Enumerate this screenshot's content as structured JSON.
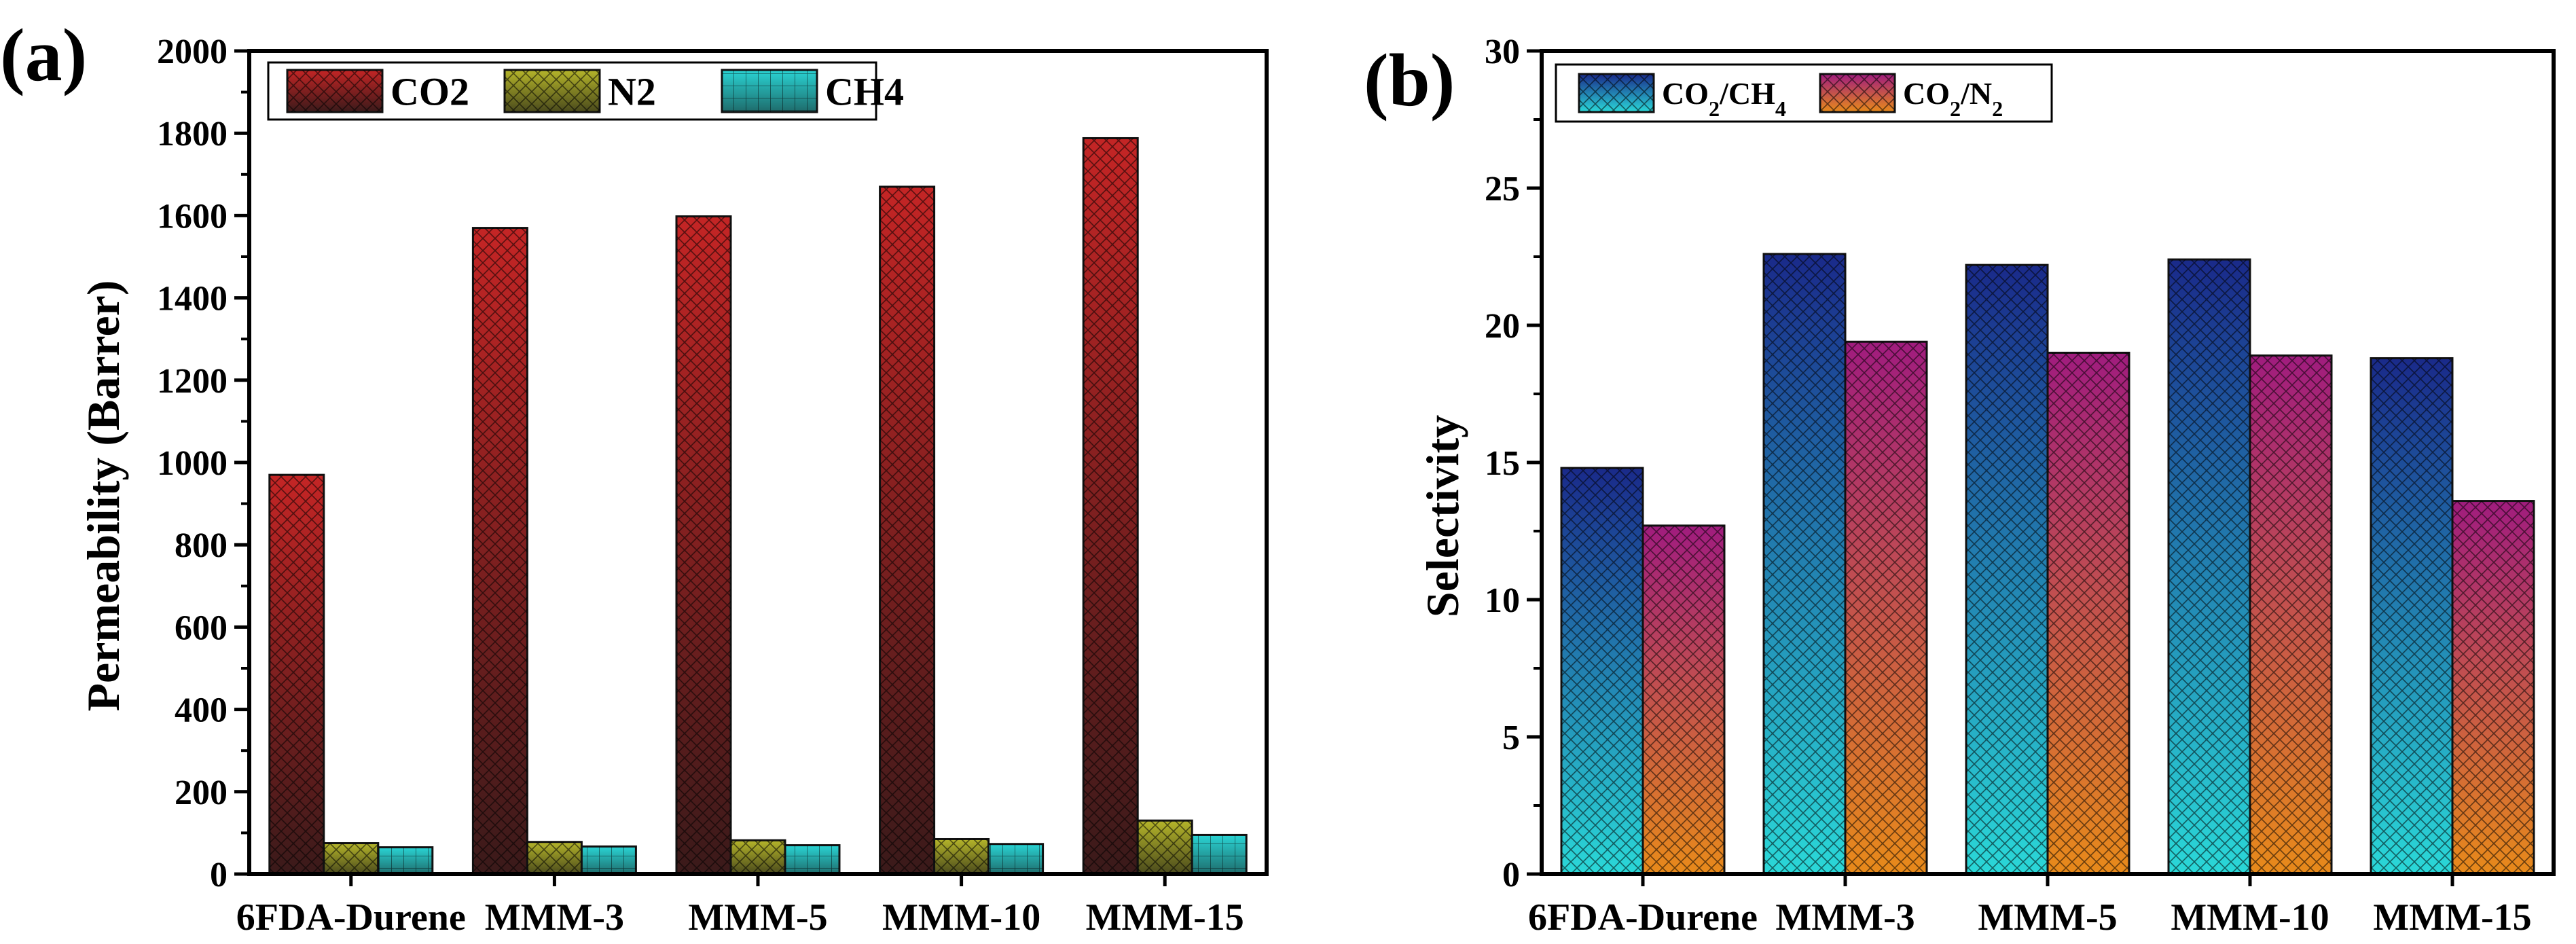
{
  "panels": {
    "a": {
      "label": "(a)"
    },
    "b": {
      "label": "(b)"
    }
  },
  "colors": {
    "co2_top": "#c42525",
    "co2_bottom": "#3a1a1a",
    "n2_top": "#b5b52a",
    "n2_bottom": "#4a4a1c",
    "ch4_top": "#2ad4d4",
    "ch4_bottom": "#1e6b6b",
    "co2ch4_top": "#1a2a8a",
    "co2ch4_bottom": "#2ad8d8",
    "co2n2_top": "#a01c7e",
    "co2n2_bottom": "#e88a1a"
  },
  "chart_data": [
    {
      "type": "bar",
      "title": "",
      "xlabel": "",
      "ylabel": "Permeability (Barrer)",
      "ylim": [
        0,
        2000
      ],
      "yticks": [
        "0",
        "200",
        "400",
        "600",
        "800",
        "1000",
        "1200",
        "1400",
        "1600",
        "1800",
        "2000"
      ],
      "categories": [
        "6FDA-Durene",
        "MMM-3",
        "MMM-5",
        "MMM-10",
        "MMM-15"
      ],
      "legend_position": "top-left",
      "series": [
        {
          "name": "CO2",
          "values": [
            970,
            1570,
            1598,
            1670,
            1788
          ]
        },
        {
          "name": "N2",
          "values": [
            75,
            78,
            82,
            85,
            130
          ]
        },
        {
          "name": "CH4",
          "values": [
            65,
            67,
            70,
            73,
            95
          ]
        }
      ]
    },
    {
      "type": "bar",
      "title": "",
      "xlabel": "",
      "ylabel": "Selectivity",
      "ylim": [
        0,
        30
      ],
      "yticks": [
        "0",
        "5",
        "10",
        "15",
        "20",
        "25",
        "30"
      ],
      "categories": [
        "6FDA-Durene",
        "MMM-3",
        "MMM-5",
        "MMM-10",
        "MMM-15"
      ],
      "legend_position": "top-left",
      "series": [
        {
          "name": "CO2/CH4",
          "values": [
            14.8,
            22.6,
            22.2,
            22.4,
            18.8
          ]
        },
        {
          "name": "CO2/N2",
          "values": [
            12.7,
            19.4,
            19.0,
            18.9,
            13.6
          ]
        }
      ]
    }
  ]
}
